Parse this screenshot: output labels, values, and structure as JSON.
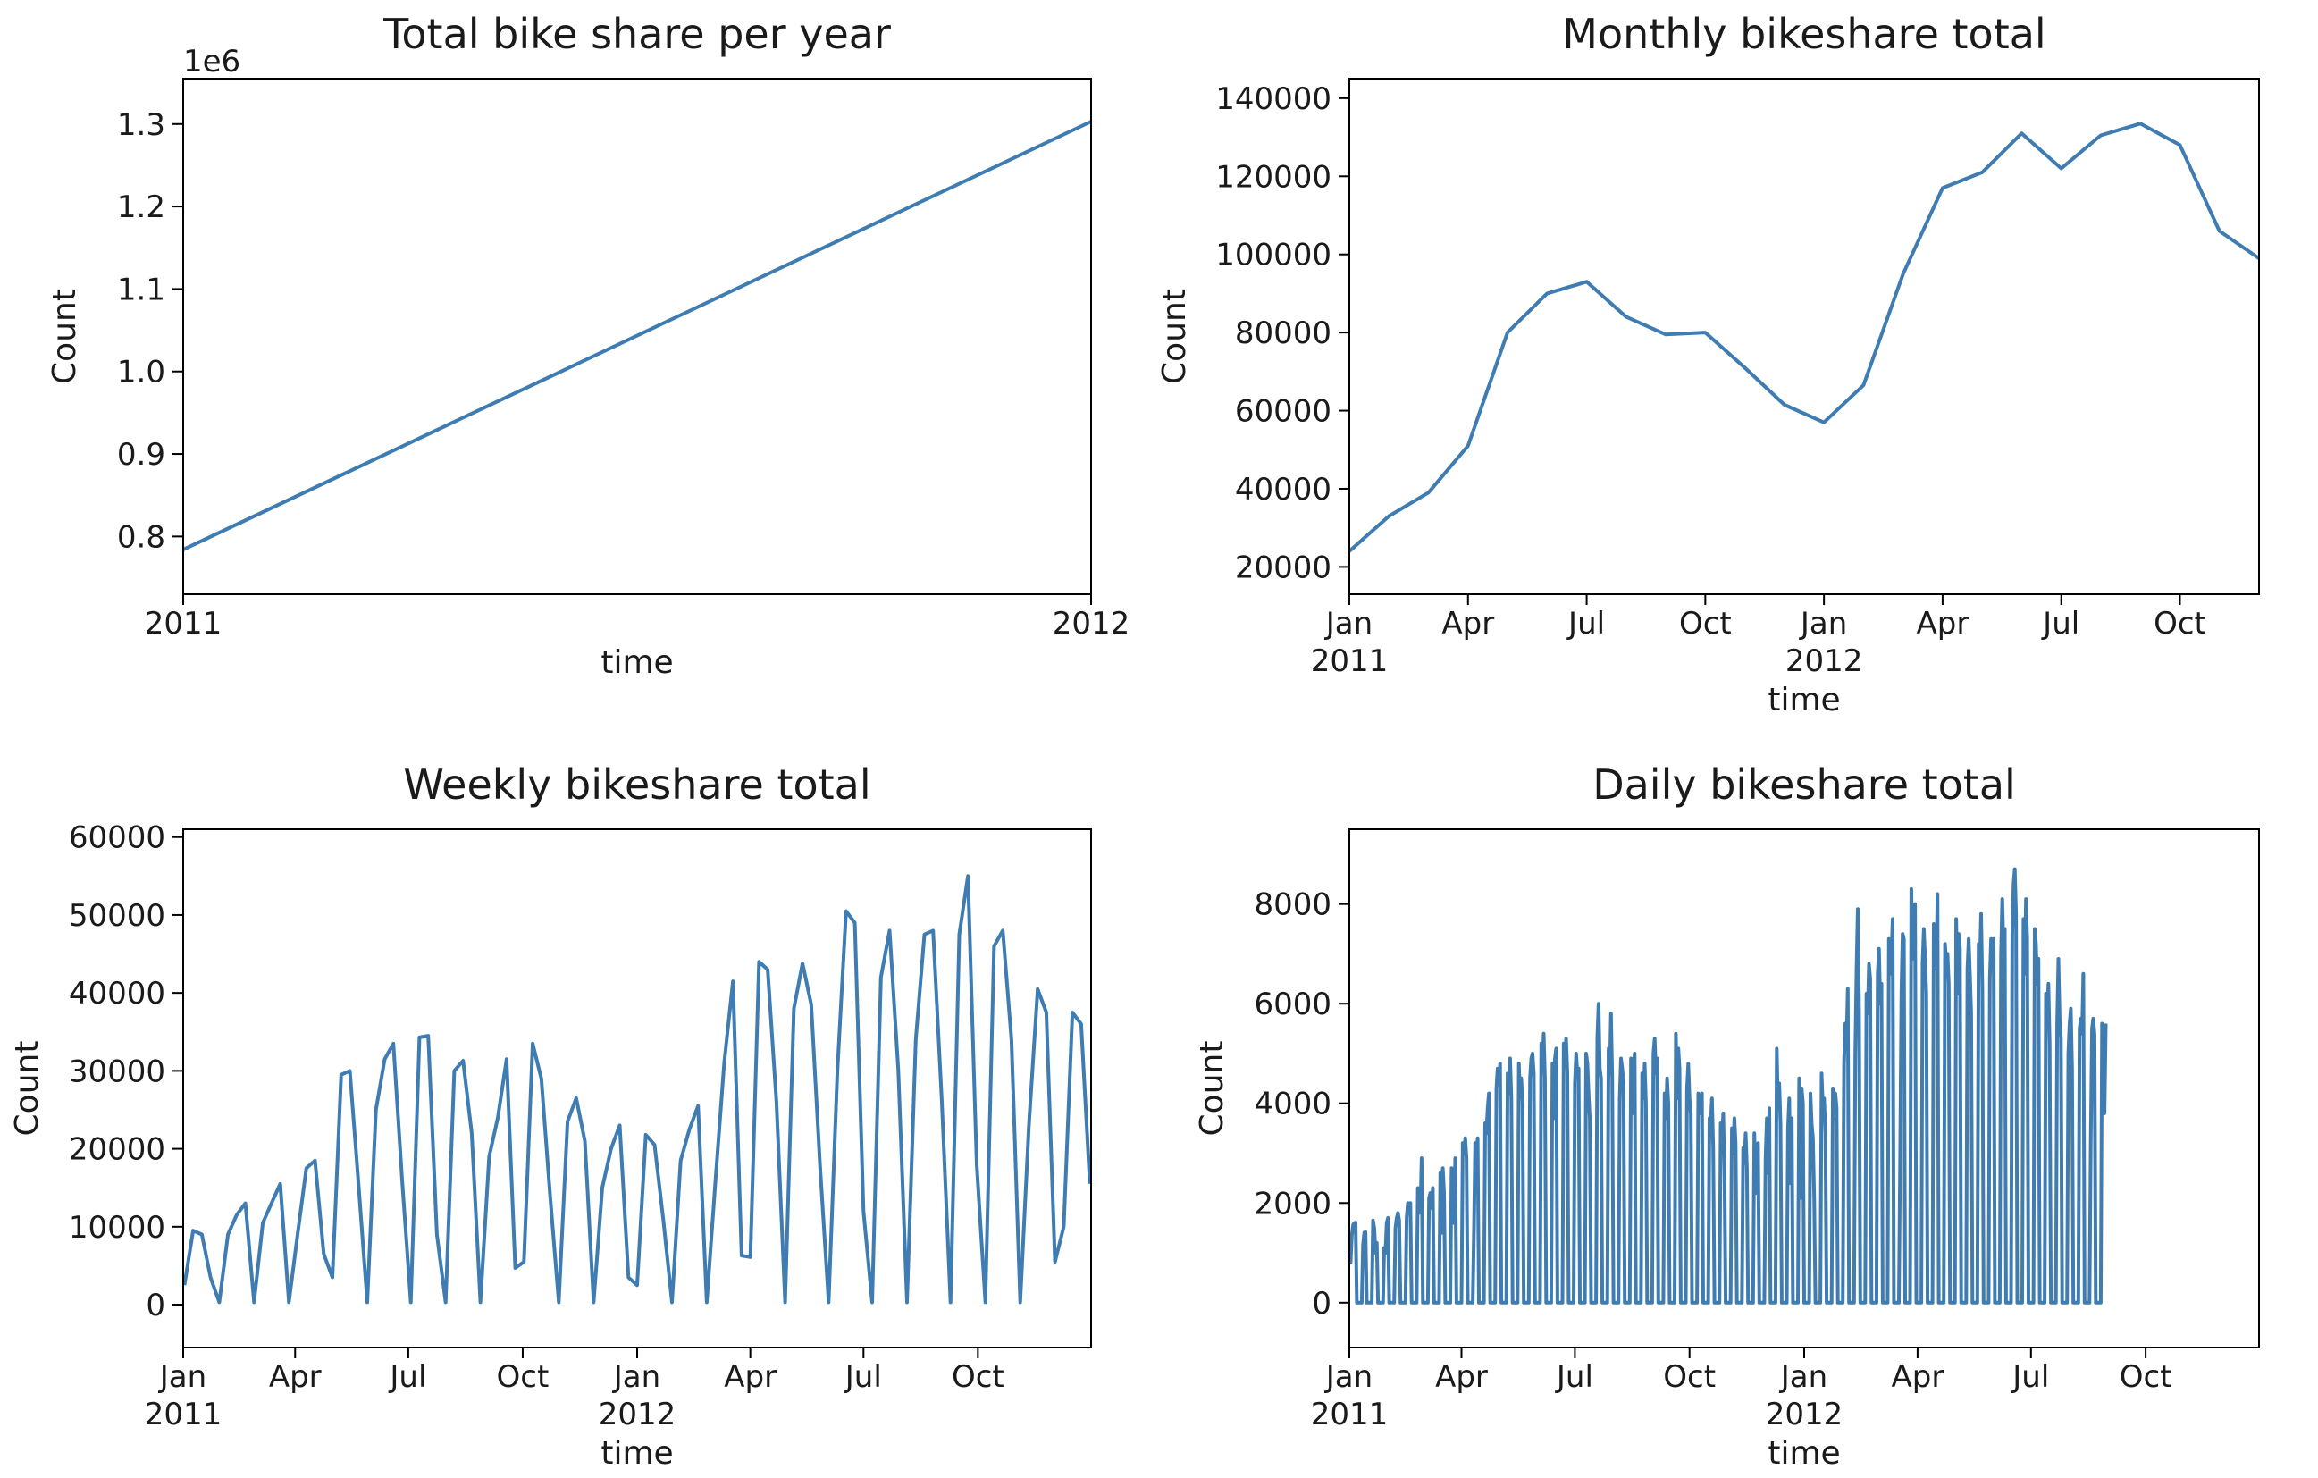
{
  "colors": {
    "line": "#3e7cb1",
    "axis": "#000000"
  },
  "chart_data": [
    {
      "type": "line",
      "title": "Total bike share per year",
      "xlabel": "time",
      "ylabel": "Count",
      "offset_label": "1e6",
      "x_type": "year",
      "x": [
        2011,
        2012
      ],
      "xlim": [
        2011,
        2012
      ],
      "xticks": [
        {
          "x": 2011,
          "label": "2011",
          "sub": ""
        },
        {
          "x": 2012,
          "label": "2012",
          "sub": ""
        }
      ],
      "yticks": [
        {
          "v": 0.8,
          "label": "0.8"
        },
        {
          "v": 0.9,
          "label": "0.9"
        },
        {
          "v": 1.0,
          "label": "1.0"
        },
        {
          "v": 1.1,
          "label": "1.1"
        },
        {
          "v": 1.2,
          "label": "1.2"
        },
        {
          "v": 1.3,
          "label": "1.3"
        }
      ],
      "ylim": [
        0.73,
        1.355
      ],
      "series": [
        {
          "values": [
            0.784,
            1.303
          ]
        }
      ]
    },
    {
      "type": "line",
      "title": "Monthly bikeshare total",
      "xlabel": "time",
      "ylabel": "Count",
      "x_type": "month",
      "x": [
        "2011-01",
        "2011-02",
        "2011-03",
        "2011-04",
        "2011-05",
        "2011-06",
        "2011-07",
        "2011-08",
        "2011-09",
        "2011-10",
        "2011-11",
        "2011-12",
        "2012-01",
        "2012-02",
        "2012-03",
        "2012-04",
        "2012-05",
        "2012-06",
        "2012-07",
        "2012-08",
        "2012-09",
        "2012-10",
        "2012-11",
        "2012-12"
      ],
      "xlim": [
        "2011-01",
        "2012-12"
      ],
      "xticks": [
        {
          "x": "2011-01",
          "label": "Jan",
          "sub": "2011"
        },
        {
          "x": "2011-04",
          "label": "Apr",
          "sub": ""
        },
        {
          "x": "2011-07",
          "label": "Jul",
          "sub": ""
        },
        {
          "x": "2011-10",
          "label": "Oct",
          "sub": ""
        },
        {
          "x": "2012-01",
          "label": "Jan",
          "sub": "2012"
        },
        {
          "x": "2012-04",
          "label": "Apr",
          "sub": ""
        },
        {
          "x": "2012-07",
          "label": "Jul",
          "sub": ""
        },
        {
          "x": "2012-10",
          "label": "Oct",
          "sub": ""
        }
      ],
      "yticks": [
        {
          "v": 20000,
          "label": "20000"
        },
        {
          "v": 40000,
          "label": "40000"
        },
        {
          "v": 60000,
          "label": "60000"
        },
        {
          "v": 80000,
          "label": "80000"
        },
        {
          "v": 100000,
          "label": "100000"
        },
        {
          "v": 120000,
          "label": "120000"
        },
        {
          "v": 140000,
          "label": "140000"
        }
      ],
      "ylim": [
        13000,
        145000
      ],
      "series": [
        {
          "values": [
            24000,
            33000,
            39000,
            51000,
            80000,
            90000,
            93000,
            84000,
            79500,
            80000,
            71000,
            61500,
            57000,
            66500,
            95000,
            117000,
            121000,
            131000,
            122000,
            130500,
            133500,
            128000,
            106000,
            99000
          ]
        }
      ]
    },
    {
      "type": "line",
      "title": "Weekly bikeshare total",
      "xlabel": "time",
      "ylabel": "Count",
      "x_type": "week",
      "x_start": "2011-01-02",
      "x_step_days": 7,
      "xlim": [
        "2011-01-01",
        "2012-12-31"
      ],
      "xticks": [
        {
          "x": "2011-01-01",
          "label": "Jan",
          "sub": "2011"
        },
        {
          "x": "2011-04-01",
          "label": "Apr",
          "sub": ""
        },
        {
          "x": "2011-07-01",
          "label": "Jul",
          "sub": ""
        },
        {
          "x": "2011-10-01",
          "label": "Oct",
          "sub": ""
        },
        {
          "x": "2012-01-01",
          "label": "Jan",
          "sub": "2012"
        },
        {
          "x": "2012-04-01",
          "label": "Apr",
          "sub": ""
        },
        {
          "x": "2012-07-01",
          "label": "Jul",
          "sub": ""
        },
        {
          "x": "2012-10-01",
          "label": "Oct",
          "sub": ""
        }
      ],
      "yticks": [
        {
          "v": 0,
          "label": "0"
        },
        {
          "v": 10000,
          "label": "10000"
        },
        {
          "v": 20000,
          "label": "20000"
        },
        {
          "v": 30000,
          "label": "30000"
        },
        {
          "v": 40000,
          "label": "40000"
        },
        {
          "v": 50000,
          "label": "50000"
        },
        {
          "v": 60000,
          "label": "60000"
        }
      ],
      "ylim": [
        -5500,
        61000
      ],
      "series": [
        {
          "values": [
            2500,
            9500,
            9000,
            3500,
            300,
            9000,
            11500,
            13000,
            300,
            10500,
            13000,
            15500,
            300,
            9000,
            17500,
            18500,
            6500,
            3500,
            29500,
            30000,
            15500,
            300,
            25000,
            31500,
            33500,
            16000,
            300,
            34300,
            34500,
            9000,
            300,
            30000,
            31300,
            22000,
            300,
            19000,
            24000,
            31500,
            4700,
            5500,
            33500,
            29000,
            14000,
            300,
            23500,
            26500,
            21000,
            300,
            15000,
            20000,
            23000,
            3500,
            2500,
            21800,
            20500,
            11000,
            300,
            18500,
            22500,
            25500,
            300,
            16000,
            31000,
            41500,
            6300,
            6100,
            44000,
            43000,
            26000,
            300,
            38000,
            43800,
            38500,
            18000,
            300,
            30000,
            50500,
            49000,
            12000,
            300,
            42000,
            48000,
            30000,
            300,
            34000,
            47500,
            48000,
            26000,
            300,
            47500,
            55000,
            18000,
            300,
            46000,
            48000,
            34000,
            300,
            23000,
            40500,
            37500,
            5500,
            10000,
            37500,
            36000,
            15500
          ]
        }
      ]
    },
    {
      "type": "line",
      "title": "Daily bikeshare total",
      "xlabel": "time",
      "ylabel": "Count",
      "x_type": "day",
      "x_start": "2011-01-01",
      "x_step_days": 1,
      "xlim": [
        "2011-01-01",
        "2012-12-31"
      ],
      "xticks": [
        {
          "x": "2011-01-01",
          "label": "Jan",
          "sub": "2011"
        },
        {
          "x": "2011-04-01",
          "label": "Apr",
          "sub": ""
        },
        {
          "x": "2011-07-01",
          "label": "Jul",
          "sub": ""
        },
        {
          "x": "2011-10-01",
          "label": "Oct",
          "sub": ""
        },
        {
          "x": "2012-01-01",
          "label": "Jan",
          "sub": "2012"
        },
        {
          "x": "2012-04-01",
          "label": "Apr",
          "sub": ""
        },
        {
          "x": "2012-07-01",
          "label": "Jul",
          "sub": ""
        },
        {
          "x": "2012-10-01",
          "label": "Oct",
          "sub": ""
        }
      ],
      "yticks": [
        {
          "v": 0,
          "label": "0"
        },
        {
          "v": 2000,
          "label": "2000"
        },
        {
          "v": 4000,
          "label": "4000"
        },
        {
          "v": 6000,
          "label": "6000"
        },
        {
          "v": 8000,
          "label": "8000"
        }
      ],
      "ylim": [
        -900,
        9500
      ],
      "series": [
        {
          "values": [
            985,
            801,
            1349,
            1562,
            1600,
            1606,
            0,
            0,
            0,
            0,
            0,
            1162,
            1406,
            1421,
            0,
            0,
            0,
            0,
            0,
            1650,
            1500,
            1000,
            1200,
            0,
            0,
            0,
            0,
            0,
            1100,
            1000,
            1600,
            1700,
            0,
            0,
            0,
            0,
            0,
            1500,
            1700,
            1800,
            1650,
            0,
            0,
            0,
            0,
            0,
            1700,
            2000,
            1900,
            2000,
            0,
            0,
            0,
            0,
            0,
            2300,
            2000,
            1800,
            2900,
            0,
            0,
            0,
            0,
            0,
            2100,
            2200,
            1900,
            2300,
            0,
            0,
            0,
            0,
            0,
            2600,
            1400,
            2700,
            2200,
            0,
            0,
            0,
            0,
            0,
            2700,
            2400,
            1600,
            2900,
            0,
            0,
            0,
            0,
            0,
            3200,
            3000,
            3300,
            2900,
            0,
            0,
            0,
            0,
            0,
            1500,
            3200,
            3000,
            3300,
            0,
            0,
            0,
            0,
            0,
            3600,
            3400,
            3900,
            4200,
            0,
            0,
            0,
            0,
            0,
            4300,
            4700,
            4400,
            4800,
            0,
            0,
            0,
            0,
            0,
            4600,
            4200,
            4900,
            4100,
            0,
            0,
            0,
            0,
            0,
            4800,
            4200,
            4500,
            4000,
            0,
            0,
            0,
            0,
            0,
            4500,
            4900,
            5000,
            4600,
            0,
            0,
            0,
            0,
            0,
            5200,
            4800,
            5400,
            4500,
            0,
            0,
            0,
            0,
            0,
            4800,
            3700,
            4900,
            5100,
            0,
            0,
            0,
            0,
            0,
            5200,
            4900,
            5300,
            4600,
            0,
            0,
            0,
            0,
            0,
            4400,
            5000,
            4600,
            4700,
            0,
            0,
            0,
            0,
            0,
            5000,
            4800,
            4200,
            3700,
            0,
            0,
            0,
            0,
            0,
            5300,
            6000,
            4700,
            4500,
            0,
            0,
            0,
            0,
            0,
            5100,
            4600,
            5800,
            4500,
            0,
            0,
            0,
            0,
            0,
            4100,
            4900,
            4700,
            4400,
            0,
            0,
            0,
            0,
            0,
            4900,
            3800,
            4700,
            5000,
            0,
            0,
            0,
            0,
            0,
            4600,
            4100,
            4800,
            4000,
            0,
            0,
            0,
            0,
            0,
            5000,
            5300,
            4600,
            4900,
            0,
            0,
            0,
            0,
            0,
            4200,
            3700,
            4500,
            4000,
            0,
            0,
            0,
            0,
            0,
            5400,
            4100,
            5100,
            4700,
            0,
            0,
            0,
            0,
            0,
            4300,
            4800,
            4100,
            3800,
            0,
            0,
            0,
            0,
            0,
            4200,
            3900,
            3800,
            4200,
            0,
            0,
            0,
            0,
            0,
            3700,
            3600,
            4100,
            3100,
            0,
            0,
            0,
            0,
            0,
            3600,
            3200,
            3800,
            2600,
            0,
            0,
            0,
            0,
            0,
            3500,
            3000,
            3700,
            3200,
            0,
            0,
            0,
            0,
            0,
            3100,
            2800,
            3400,
            2700,
            0,
            0,
            0,
            0,
            0,
            3400,
            2200,
            3000,
            3200,
            0,
            0,
            0,
            0,
            0,
            2900,
            3700,
            2600,
            3900,
            0,
            0,
            0,
            0,
            0,
            5100,
            3900,
            4400,
            3600,
            0,
            0,
            0,
            0,
            0,
            3500,
            4100,
            2400,
            3700,
            0,
            0,
            0,
            0,
            0,
            4500,
            2100,
            4300,
            4000,
            0,
            0,
            0,
            0,
            0,
            4200,
            3600,
            3300,
            2100,
            0,
            0,
            0,
            0,
            0,
            4600,
            3900,
            4100,
            3400,
            0,
            0,
            0,
            0,
            0,
            4300,
            3700,
            4200,
            3900,
            0,
            0,
            0,
            0,
            0,
            4800,
            5600,
            5200,
            6300,
            0,
            0,
            0,
            0,
            0,
            5000,
            6700,
            7900,
            5900,
            0,
            0,
            0,
            0,
            0,
            6200,
            5800,
            6800,
            6500,
            0,
            0,
            0,
            0,
            0,
            6600,
            7100,
            6000,
            6400,
            0,
            0,
            0,
            0,
            0,
            7300,
            6600,
            6900,
            7700,
            0,
            0,
            0,
            0,
            0,
            2900,
            6200,
            7400,
            7300,
            0,
            0,
            0,
            0,
            0,
            8300,
            6900,
            7600,
            8000,
            0,
            0,
            0,
            0,
            0,
            6800,
            7500,
            6900,
            6200,
            0,
            0,
            0,
            0,
            0,
            7600,
            7400,
            6700,
            8200,
            0,
            0,
            0,
            0,
            0,
            7200,
            6800,
            7000,
            6400,
            0,
            0,
            0,
            0,
            0,
            7700,
            6200,
            7400,
            7100,
            0,
            0,
            0,
            0,
            0,
            6700,
            7300,
            6600,
            5800,
            0,
            0,
            0,
            0,
            0,
            7200,
            6800,
            7800,
            6300,
            0,
            0,
            0,
            0,
            0,
            6500,
            7300,
            6800,
            7300,
            0,
            0,
            0,
            0,
            0,
            7000,
            8100,
            7100,
            7500,
            0,
            0,
            0,
            0,
            0,
            7400,
            8400,
            8700,
            7800,
            0,
            0,
            0,
            0,
            0,
            7700,
            6600,
            8100,
            7300,
            0,
            0,
            0,
            0,
            0,
            7500,
            7200,
            6400,
            6900,
            0,
            0,
            0,
            0,
            0,
            6200,
            5500,
            6400,
            5200,
            0,
            0,
            0,
            0,
            0,
            5600,
            6900,
            5700,
            5300,
            0,
            0,
            0,
            0,
            0,
            5000,
            5600,
            5900,
            4700,
            0,
            0,
            0,
            0,
            0,
            5500,
            5700,
            5400,
            6600,
            0,
            0,
            0,
            0,
            0,
            3200,
            5500,
            5700,
            5400,
            0,
            0,
            0,
            0,
            0,
            5600,
            5200,
            3800,
            5600
          ]
        }
      ]
    }
  ]
}
